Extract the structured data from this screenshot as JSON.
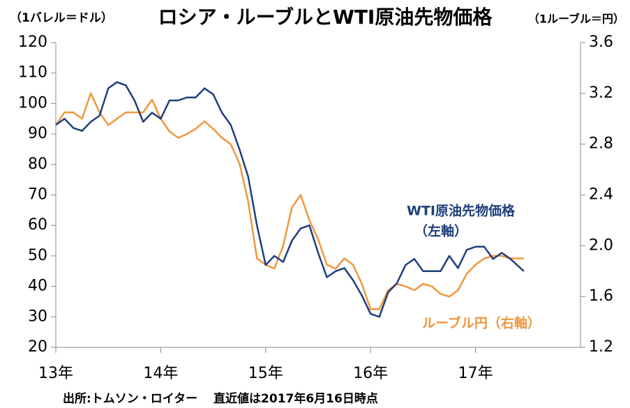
{
  "chart_data": {
    "type": "line",
    "title": "ロシア・ルーブルとWTI原油先物価格",
    "y_unit": "（1バレル＝ドル）",
    "y2_unit": "（1ルーブル＝円）",
    "annotations": [
      "（左軸）"
    ],
    "source": "出所:トムソン・ロイター　 直近値は2017年6月16日時点",
    "x": [
      13.0,
      13.083,
      13.167,
      13.25,
      13.333,
      13.417,
      13.5,
      13.583,
      13.667,
      13.75,
      13.833,
      13.917,
      14.0,
      14.083,
      14.167,
      14.25,
      14.333,
      14.417,
      14.5,
      14.583,
      14.667,
      14.75,
      14.833,
      14.917,
      15.0,
      15.083,
      15.167,
      15.25,
      15.333,
      15.417,
      15.5,
      15.583,
      15.667,
      15.75,
      15.833,
      15.917,
      16.0,
      16.083,
      16.167,
      16.25,
      16.333,
      16.417,
      16.5,
      16.583,
      16.667,
      16.75,
      16.833,
      16.917,
      17.0,
      17.083,
      17.167,
      17.25,
      17.333,
      17.46
    ],
    "xlim": [
      13,
      18
    ],
    "xticks": [
      {
        "value": 13,
        "label": "13年"
      },
      {
        "value": 14,
        "label": "14年"
      },
      {
        "value": 15,
        "label": "15年"
      },
      {
        "value": 16,
        "label": "16年"
      },
      {
        "value": 17,
        "label": "17年"
      }
    ],
    "ylim": [
      20,
      120
    ],
    "yticks": [
      20,
      30,
      40,
      50,
      60,
      70,
      80,
      90,
      100,
      110,
      120
    ],
    "y2lim": [
      1.2,
      3.6
    ],
    "y2ticks": [
      1.2,
      1.6,
      {
        "value": 2,
        "label": "2.0"
      },
      2.4,
      2.8,
      3.2,
      3.6
    ],
    "series": [
      {
        "name": "WTI原油先物価格",
        "color": "#1f3f7a",
        "values": [
          93,
          95,
          92,
          91,
          94,
          96,
          105,
          107,
          106,
          101,
          94,
          97,
          95,
          101,
          101,
          102,
          102,
          105,
          103,
          97,
          93,
          85,
          76,
          60,
          47,
          50,
          48,
          55,
          59,
          60,
          51,
          43,
          45,
          46,
          42,
          37,
          31,
          30,
          38,
          41,
          47,
          49,
          45,
          45,
          45,
          50,
          46,
          52,
          53,
          53,
          49,
          51,
          49,
          45
        ]
      },
      {
        "name": "ルーブル円（右軸）",
        "color": "#f0963c",
        "axis": "y2",
        "values": [
          2.95,
          3.05,
          3.05,
          3.0,
          3.2,
          3.05,
          2.95,
          3.0,
          3.05,
          3.05,
          3.05,
          3.15,
          3.0,
          2.9,
          2.85,
          2.88,
          2.92,
          2.98,
          2.92,
          2.85,
          2.8,
          2.65,
          2.35,
          1.9,
          1.85,
          1.82,
          2.0,
          2.3,
          2.4,
          2.2,
          2.05,
          1.85,
          1.82,
          1.9,
          1.85,
          1.7,
          1.5,
          1.5,
          1.65,
          1.7,
          1.68,
          1.65,
          1.7,
          1.68,
          1.62,
          1.6,
          1.65,
          1.78,
          1.85,
          1.9,
          1.92,
          1.92,
          1.9,
          1.9
        ]
      }
    ]
  }
}
